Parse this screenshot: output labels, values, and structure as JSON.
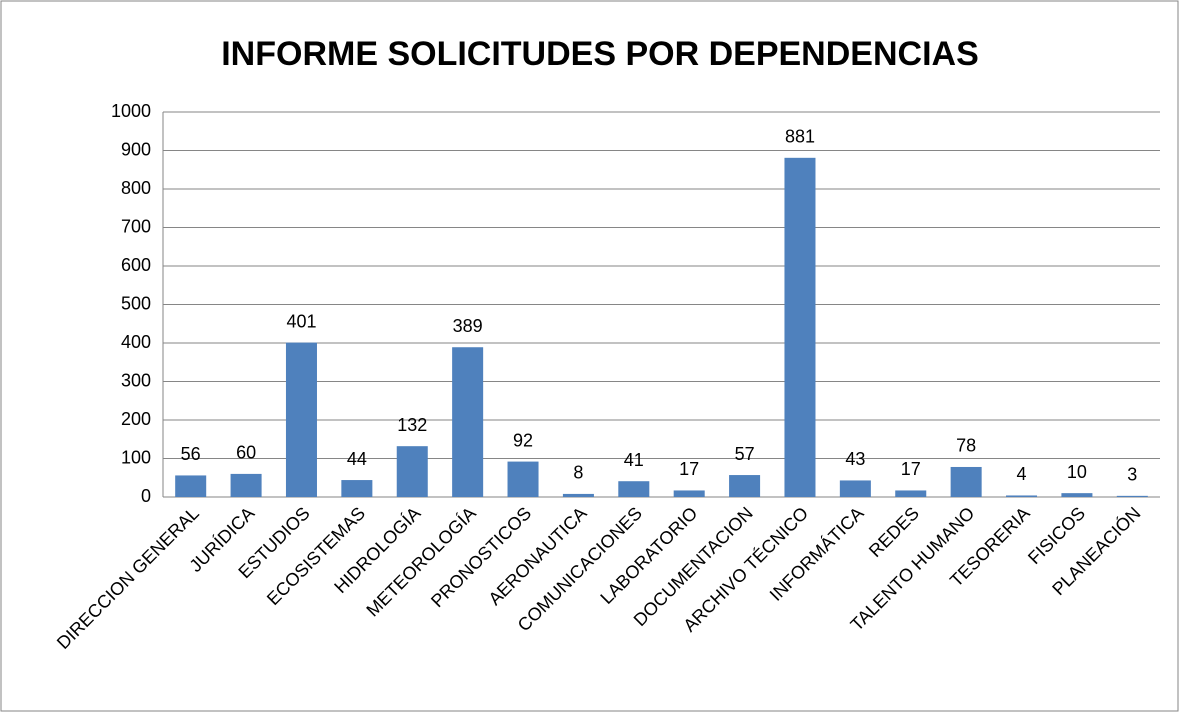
{
  "chart_data": {
    "type": "bar",
    "title": "INFORME SOLICITUDES POR DEPENDENCIAS",
    "categories": [
      "DIRECCION GENERAL",
      "JURÍDICA",
      "ESTUDIOS",
      "ECOSISTEMAS",
      "HIDROLOGÍA",
      "METEOROLOGÍA",
      "PRONOSTICOS",
      "AERONAUTICA",
      "COMUNICACIONES",
      "LABORATORIO",
      "DOCUMENTACION",
      "ARCHIVO TÉCNICO",
      "INFORMÁTICA",
      "REDES",
      "TALENTO HUMANO",
      "TESORERIA",
      "FISICOS",
      "PLANEACIÓN"
    ],
    "values": [
      56,
      60,
      401,
      44,
      132,
      389,
      92,
      8,
      41,
      17,
      57,
      881,
      43,
      17,
      78,
      4,
      10,
      3
    ],
    "color": "#4f81bd",
    "ylim": [
      0,
      1000
    ],
    "yticks": [
      0,
      100,
      200,
      300,
      400,
      500,
      600,
      700,
      800,
      900,
      1000
    ],
    "grid": true
  }
}
